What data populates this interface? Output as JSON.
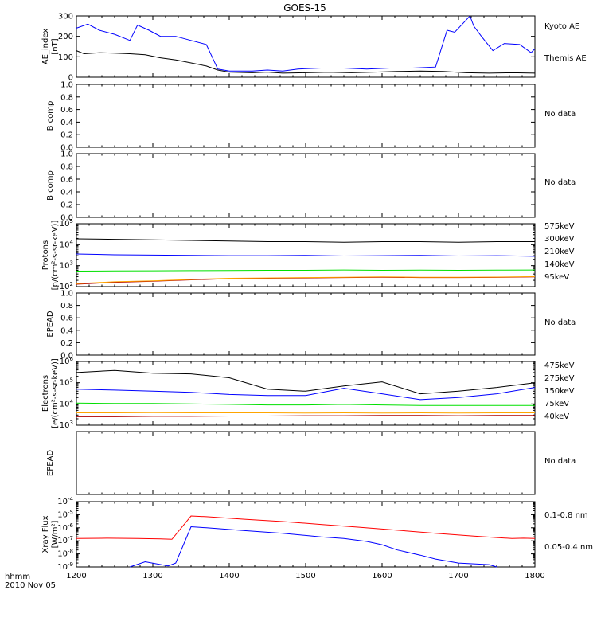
{
  "figure": {
    "title": "GOES-15",
    "time_label_hhmm": "hhmm",
    "date_label": "2010 Nov 05",
    "x_ticks": [
      "1200",
      "1300",
      "1400",
      "1500",
      "1600",
      "1700",
      "1800"
    ]
  },
  "chart_data": [
    {
      "type": "line",
      "ylabel_line1": "AE_index",
      "ylabel_line2": "[nT]",
      "ylim": [
        0,
        300
      ],
      "y_ticks": [
        "0",
        "100",
        "200",
        "300"
      ],
      "x_unit": "hhmm (decimal hours)",
      "series": [
        {
          "name": "Kyoto AE",
          "color": "#0000ff",
          "x": [
            12.0,
            12.15,
            12.3,
            12.5,
            12.7,
            12.8,
            12.95,
            13.1,
            13.3,
            13.5,
            13.7,
            13.85,
            14.0,
            14.3,
            14.5,
            14.7,
            14.9,
            15.2,
            15.5,
            15.8,
            16.1,
            16.4,
            16.7,
            16.85,
            16.95,
            17.05,
            17.15,
            17.2,
            17.3,
            17.45,
            17.6,
            17.8,
            17.95,
            18.0
          ],
          "y": [
            240,
            260,
            230,
            210,
            180,
            255,
            230,
            200,
            200,
            180,
            160,
            40,
            30,
            30,
            35,
            30,
            40,
            45,
            45,
            40,
            45,
            45,
            50,
            230,
            220,
            260,
            300,
            250,
            200,
            130,
            165,
            160,
            120,
            140
          ]
        },
        {
          "name": "Themis AE",
          "color": "#000000",
          "x": [
            12.0,
            12.1,
            12.3,
            12.5,
            12.7,
            12.9,
            13.1,
            13.3,
            13.5,
            13.7,
            13.85,
            14.0,
            14.3,
            14.5,
            14.7,
            15.0,
            15.3,
            15.6,
            15.9,
            16.2,
            16.5,
            16.8,
            17.1,
            17.4,
            17.7,
            18.0
          ],
          "y": [
            130,
            115,
            120,
            118,
            115,
            110,
            95,
            85,
            70,
            55,
            35,
            25,
            22,
            25,
            20,
            22,
            24,
            22,
            25,
            28,
            30,
            28,
            22,
            20,
            22,
            20
          ]
        }
      ]
    },
    {
      "type": "line",
      "ylabel": "B comp",
      "ylim": [
        0,
        1
      ],
      "y_ticks": [
        "0.0",
        "0.2",
        "0.4",
        "0.6",
        "0.8",
        "1.0"
      ],
      "status": "No data",
      "series": []
    },
    {
      "type": "line",
      "ylabel": "B comp",
      "ylim": [
        0,
        1
      ],
      "y_ticks": [
        "0.0",
        "0.2",
        "0.4",
        "0.6",
        "0.8",
        "1.0"
      ],
      "status": "No data",
      "series": []
    },
    {
      "type": "line",
      "ylabel_line1": "Protons",
      "ylabel_line2": "[p/(cm²-s-sr-keV)]",
      "ylim": [
        100,
        100000
      ],
      "y_scale": "log",
      "y_ticks_exp": [
        2,
        3,
        4,
        5
      ],
      "series": [
        {
          "name": "575keV",
          "color": "#b00000",
          "x": [
            12.0,
            12.5,
            13.0,
            13.5,
            14.0,
            14.5,
            15.0,
            15.5,
            16.0,
            16.5,
            17.0,
            17.5,
            18.0
          ],
          "y": [
            130,
            160,
            180,
            210,
            240,
            250,
            260,
            270,
            280,
            270,
            270,
            275,
            290
          ]
        },
        {
          "name": "300keV",
          "color": "#ffa500",
          "x": [
            12.0,
            12.5,
            13.0,
            13.5,
            14.0,
            14.5,
            15.0,
            15.5,
            16.0,
            16.5,
            17.0,
            17.5,
            18.0
          ],
          "y": [
            140,
            170,
            190,
            220,
            250,
            260,
            270,
            280,
            290,
            280,
            280,
            285,
            300
          ]
        },
        {
          "name": "210keV",
          "color": "#00e000",
          "x": [
            12.0,
            12.5,
            13.0,
            13.5,
            14.0,
            14.5,
            15.0,
            15.5,
            16.0,
            16.5,
            17.0,
            17.5,
            18.0
          ],
          "y": [
            550,
            560,
            570,
            580,
            590,
            600,
            600,
            620,
            600,
            610,
            600,
            610,
            620
          ]
        },
        {
          "name": "140keV",
          "color": "#0000ff",
          "x": [
            12.0,
            12.5,
            13.0,
            13.5,
            14.0,
            14.5,
            15.0,
            15.5,
            16.0,
            16.5,
            17.0,
            17.5,
            18.0
          ],
          "y": [
            3600,
            3300,
            3200,
            3100,
            3000,
            3000,
            3100,
            2900,
            3000,
            3100,
            2900,
            3000,
            2800
          ]
        },
        {
          "name": "95keV",
          "color": "#000000",
          "x": [
            12.0,
            12.5,
            13.0,
            13.5,
            14.0,
            14.5,
            15.0,
            15.5,
            16.0,
            16.5,
            17.0,
            17.5,
            18.0
          ],
          "y": [
            19000,
            18000,
            17000,
            16000,
            15000,
            14000,
            14000,
            13000,
            14000,
            14000,
            13000,
            14000,
            14000
          ]
        }
      ]
    },
    {
      "type": "line",
      "ylabel": "EPEAD",
      "ylim": [
        0,
        1
      ],
      "y_ticks": [
        "0.0",
        "0.2",
        "0.4",
        "0.6",
        "0.8",
        "1.0"
      ],
      "status": "No data",
      "series": []
    },
    {
      "type": "line",
      "ylabel_line1": "Electrons",
      "ylabel_line2": "[e/(cm²-s-sr-keV)]",
      "ylim": [
        1000,
        1000000
      ],
      "y_scale": "log",
      "y_ticks_exp": [
        3,
        4,
        5,
        6
      ],
      "series": [
        {
          "name": "475keV",
          "color": "#b00000",
          "x": [
            12.0,
            12.5,
            13.0,
            13.5,
            14.0,
            14.5,
            15.0,
            15.5,
            16.0,
            16.5,
            17.0,
            17.5,
            18.0
          ],
          "y": [
            2500,
            2500,
            2600,
            2600,
            2700,
            2700,
            2800,
            2800,
            2900,
            2900,
            2800,
            2900,
            2900
          ]
        },
        {
          "name": "275keV",
          "color": "#ffa500",
          "x": [
            12.0,
            12.5,
            13.0,
            13.5,
            14.0,
            14.5,
            15.0,
            15.5,
            16.0,
            16.5,
            17.0,
            17.5,
            18.0
          ],
          "y": [
            3800,
            3800,
            3900,
            3800,
            3800,
            3800,
            3700,
            3800,
            3700,
            3800,
            3700,
            3800,
            3800
          ]
        },
        {
          "name": "150keV",
          "color": "#00e000",
          "x": [
            12.0,
            12.5,
            13.0,
            13.5,
            14.0,
            14.5,
            15.0,
            15.5,
            16.0,
            16.5,
            17.0,
            17.5,
            18.0
          ],
          "y": [
            11000,
            10500,
            10500,
            10000,
            9500,
            9000,
            9000,
            9500,
            9000,
            8500,
            8500,
            8500,
            8500
          ]
        },
        {
          "name": "75keV",
          "color": "#0000ff",
          "x": [
            12.0,
            12.5,
            13.0,
            13.5,
            14.0,
            14.5,
            15.0,
            15.5,
            16.0,
            16.5,
            17.0,
            17.5,
            18.0
          ],
          "y": [
            50000,
            45000,
            40000,
            35000,
            28000,
            25000,
            25000,
            55000,
            30000,
            16000,
            20000,
            30000,
            60000
          ]
        },
        {
          "name": "40keV",
          "color": "#000000",
          "x": [
            12.0,
            12.5,
            13.0,
            13.5,
            14.0,
            14.5,
            15.0,
            15.5,
            16.0,
            16.5,
            17.0,
            17.5,
            18.0
          ],
          "y": [
            300000,
            380000,
            280000,
            260000,
            170000,
            50000,
            40000,
            70000,
            110000,
            30000,
            40000,
            60000,
            100000
          ]
        }
      ]
    },
    {
      "type": "line",
      "ylabel": "EPEAD",
      "ylim": [
        0,
        1
      ],
      "y_ticks": [],
      "status": "No data",
      "series": []
    },
    {
      "type": "line",
      "ylabel_line1": "Xray Flux",
      "ylabel_line2": "[W/m²]",
      "ylim": [
        1e-09,
        0.0001
      ],
      "y_scale": "log",
      "y_ticks_exp": [
        -9,
        -8,
        -7,
        -6,
        -5,
        -4
      ],
      "series": [
        {
          "name": "0.1-0.8 nm",
          "color": "#ff0000",
          "x": [
            12.0,
            12.4,
            12.8,
            13.1,
            13.25,
            13.5,
            13.7,
            14.2,
            14.7,
            15.2,
            15.7,
            16.2,
            16.7,
            17.2,
            17.7,
            17.85,
            18.0
          ],
          "y": [
            1.5e-07,
            1.6e-07,
            1.5e-07,
            1.4e-07,
            1.3e-07,
            8e-06,
            7e-06,
            4.5e-06,
            3e-06,
            1.8e-06,
            1.1e-06,
            6.5e-07,
            3.8e-07,
            2.3e-07,
            1.5e-07,
            1.6e-07,
            1.5e-07
          ]
        },
        {
          "name": "0.05-0.4 nm",
          "color": "#0000ff",
          "x": [
            12.7,
            12.9,
            13.2,
            13.3,
            13.5,
            13.7,
            14.2,
            14.7,
            15.2,
            15.5,
            15.8,
            16.0,
            16.2,
            16.5,
            16.7,
            17.0,
            17.4,
            17.5
          ],
          "y": [
            1e-09,
            2.5e-09,
            1.2e-09,
            2e-09,
            1.2e-06,
            1e-06,
            6e-07,
            3.8e-07,
            2e-07,
            1.5e-07,
            9e-08,
            5e-08,
            2e-08,
            8e-09,
            4e-09,
            2e-09,
            1.5e-09,
            1e-09
          ]
        }
      ]
    }
  ]
}
